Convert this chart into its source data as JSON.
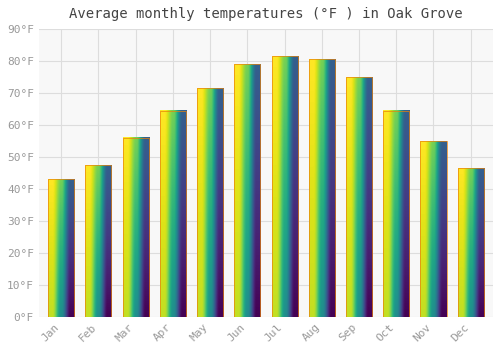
{
  "title": "Average monthly temperatures (°F ) in Oak Grove",
  "months": [
    "Jan",
    "Feb",
    "Mar",
    "Apr",
    "May",
    "Jun",
    "Jul",
    "Aug",
    "Sep",
    "Oct",
    "Nov",
    "Dec"
  ],
  "values": [
    43,
    47.5,
    56,
    64.5,
    71.5,
    79,
    81.5,
    80.5,
    75,
    64.5,
    55,
    46.5
  ],
  "bar_color_dark": "#E8820A",
  "bar_color_mid": "#F5A623",
  "bar_color_light": "#FFCC55",
  "ylim": [
    0,
    90
  ],
  "ytick_step": 10,
  "background_color": "#ffffff",
  "plot_bg_color": "#f8f8f8",
  "grid_color": "#dddddd",
  "title_fontsize": 10,
  "tick_fontsize": 8,
  "font_family": "monospace"
}
